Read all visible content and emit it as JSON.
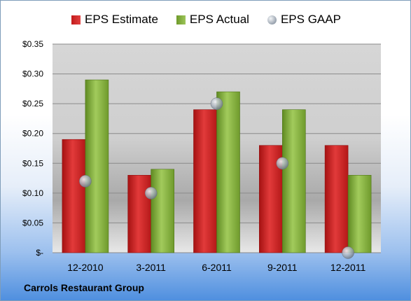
{
  "legend": {
    "estimate": "EPS Estimate",
    "actual": "EPS Actual",
    "gaap": "EPS GAAP"
  },
  "colors": {
    "estimate": "#d42a2a",
    "actual": "#8bb443",
    "gaap": "#a8b0ba"
  },
  "company": "Carrols Restaurant Group",
  "chart_data": {
    "type": "bar",
    "categories": [
      "12-2010",
      "3-2011",
      "6-2011",
      "9-2011",
      "12-2011"
    ],
    "series": [
      {
        "name": "EPS Estimate",
        "values": [
          0.19,
          0.13,
          0.24,
          0.18,
          0.18
        ]
      },
      {
        "name": "EPS Actual",
        "values": [
          0.29,
          0.14,
          0.27,
          0.24,
          0.13
        ]
      },
      {
        "name": "EPS GAAP",
        "marker": "sphere",
        "values": [
          0.12,
          0.1,
          0.25,
          0.15,
          0.0
        ]
      }
    ],
    "yticks": [
      0,
      0.05,
      0.1,
      0.15,
      0.2,
      0.25,
      0.3,
      0.35
    ],
    "ytick_labels": [
      "$-",
      "$0.05",
      "$0.10",
      "$0.15",
      "$0.20",
      "$0.25",
      "$0.30",
      "$0.35"
    ],
    "ylim": [
      0,
      0.35
    ],
    "grid": true,
    "legend_position": "top"
  }
}
